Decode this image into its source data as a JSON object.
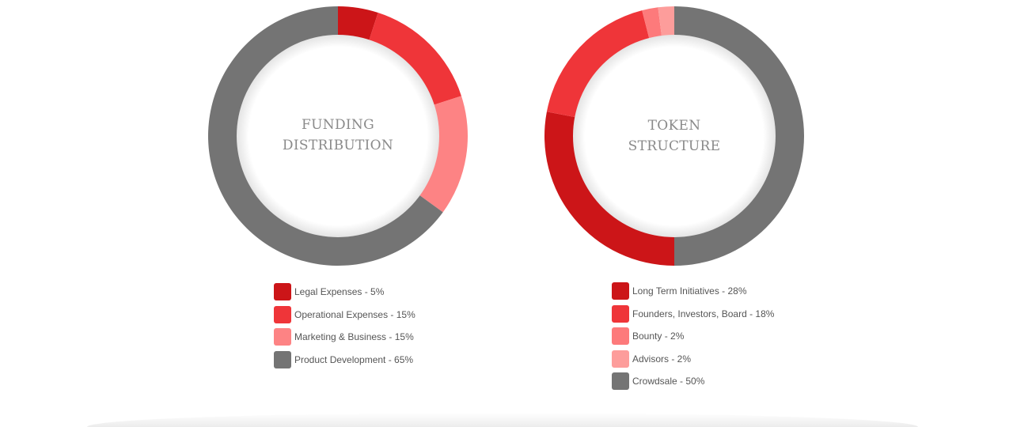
{
  "chart_data": [
    {
      "type": "pie",
      "title_lines": [
        "FUNDING",
        "DISTRIBUTION"
      ],
      "slices": [
        {
          "label": "Legal Expenses - 5%",
          "value": 5,
          "color": "#cc1518"
        },
        {
          "label": "Operational Expenses - 15%",
          "value": 15,
          "color": "#ef3539"
        },
        {
          "label": "Marketing & Business - 15%",
          "value": 15,
          "color": "#fd8384"
        },
        {
          "label": "Product Development - 65%",
          "value": 65,
          "color": "#747474"
        }
      ]
    },
    {
      "type": "pie",
      "title_lines": [
        "TOKEN",
        "STRUCTURE"
      ],
      "slices": [
        {
          "label": "Crowdsale - 50%",
          "value": 50,
          "color": "#747474"
        },
        {
          "label": "Long Term Initiatives - 28%",
          "value": 28,
          "color": "#cc1518"
        },
        {
          "label": "Founders, Investors, Board - 18%",
          "value": 18,
          "color": "#ef3539"
        },
        {
          "label": "Bounty - 2%",
          "value": 2,
          "color": "#fd7a7b"
        },
        {
          "label": "Advisors - 2%",
          "value": 2,
          "color": "#fd9d9b"
        }
      ],
      "legend_order": [
        1,
        2,
        3,
        4,
        0
      ]
    }
  ]
}
